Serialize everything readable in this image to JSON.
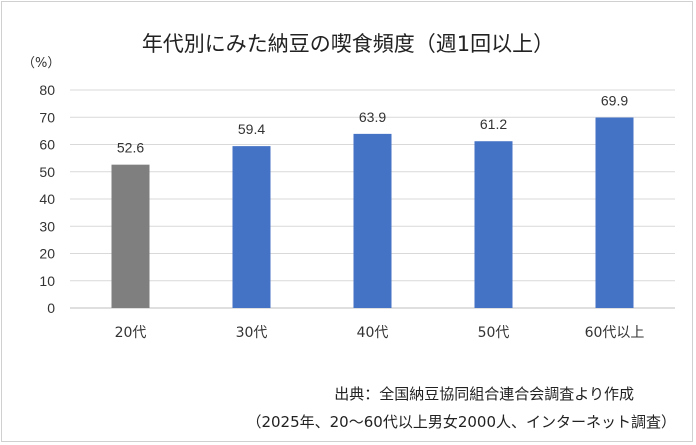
{
  "chart_data": {
    "type": "bar",
    "title": "年代別にみた納豆の喫食頻度（週1回以上）",
    "ylabel": "（%）",
    "xlabel": "",
    "categories": [
      "20代",
      "30代",
      "40代",
      "50代",
      "60代以上"
    ],
    "values": [
      52.6,
      59.4,
      63.9,
      61.2,
      69.9
    ],
    "data_labels": [
      "52.6",
      "59.4",
      "63.9",
      "61.2",
      "69.9"
    ],
    "bar_colors": [
      "#7f7f7f",
      "#4472c4",
      "#4472c4",
      "#4472c4",
      "#4472c4"
    ],
    "ylim": [
      0,
      80
    ],
    "yticks": [
      0,
      10,
      20,
      30,
      40,
      50,
      60,
      70,
      80
    ],
    "grid": true,
    "legend": "none"
  },
  "source": {
    "line1": "出典：全国納豆協同組合連合会調査より作成",
    "line2": "（2025年、20～60代以上男女2000人、インターネット調査）"
  }
}
